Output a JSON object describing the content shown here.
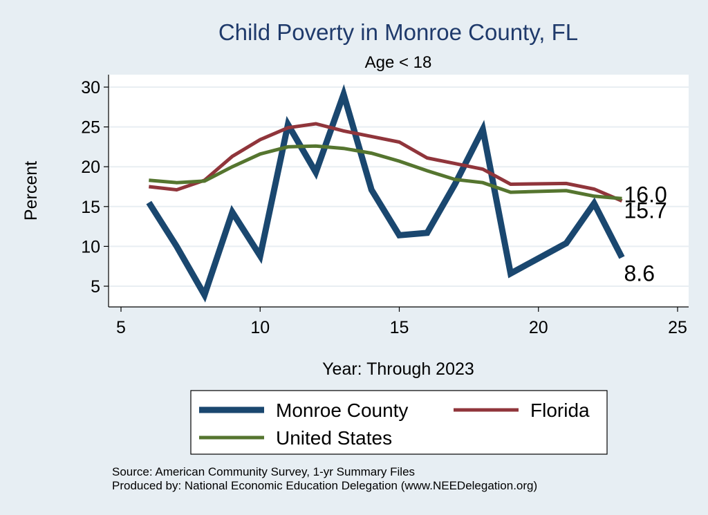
{
  "chart_data": {
    "type": "line",
    "title": "Child Poverty in Monroe County, FL",
    "subtitle": "Age < 18",
    "xlabel": "Year: Through 2023",
    "ylabel": "Percent",
    "xlim": [
      5,
      25
    ],
    "ylim": [
      2,
      31
    ],
    "xticks": [
      5,
      10,
      15,
      20,
      25
    ],
    "yticks": [
      5,
      10,
      15,
      20,
      25,
      30
    ],
    "grid": true,
    "legend_position": "bottom",
    "series": [
      {
        "name": "Monroe County",
        "color": "#1a476f",
        "width": 9,
        "x": [
          6,
          7,
          8,
          9,
          10,
          11,
          12,
          13,
          14,
          15,
          16,
          17,
          18,
          19,
          21,
          22,
          23
        ],
        "values": [
          15.5,
          10.0,
          3.9,
          14.3,
          8.8,
          25.3,
          19.3,
          29.1,
          17.1,
          11.4,
          11.7,
          17.8,
          24.7,
          6.6,
          10.4,
          15.4,
          8.6
        ],
        "end_label": "8.6"
      },
      {
        "name": "Florida",
        "color": "#90353b",
        "width": 5,
        "x": [
          6,
          7,
          8,
          9,
          10,
          11,
          12,
          13,
          14,
          15,
          16,
          17,
          18,
          19,
          21,
          22,
          23
        ],
        "values": [
          17.5,
          17.1,
          18.3,
          21.3,
          23.4,
          24.9,
          25.4,
          24.5,
          23.8,
          23.1,
          21.1,
          20.4,
          19.7,
          17.8,
          17.9,
          17.2,
          15.7
        ],
        "end_label": "15.7"
      },
      {
        "name": "United States",
        "color": "#55752f",
        "width": 5,
        "x": [
          6,
          7,
          8,
          9,
          10,
          11,
          12,
          13,
          14,
          15,
          16,
          17,
          18,
          19,
          21,
          22,
          23
        ],
        "values": [
          18.3,
          18.0,
          18.2,
          20.0,
          21.6,
          22.5,
          22.6,
          22.3,
          21.7,
          20.7,
          19.5,
          18.4,
          18.0,
          16.8,
          17.0,
          16.3,
          16.0
        ],
        "end_label": "16.0"
      }
    ],
    "notes": [
      "Source: American Community Survey, 1-yr Summary Files",
      "Produced by: National Economic Education Delegation (www.NEEDelegation.org)"
    ]
  }
}
